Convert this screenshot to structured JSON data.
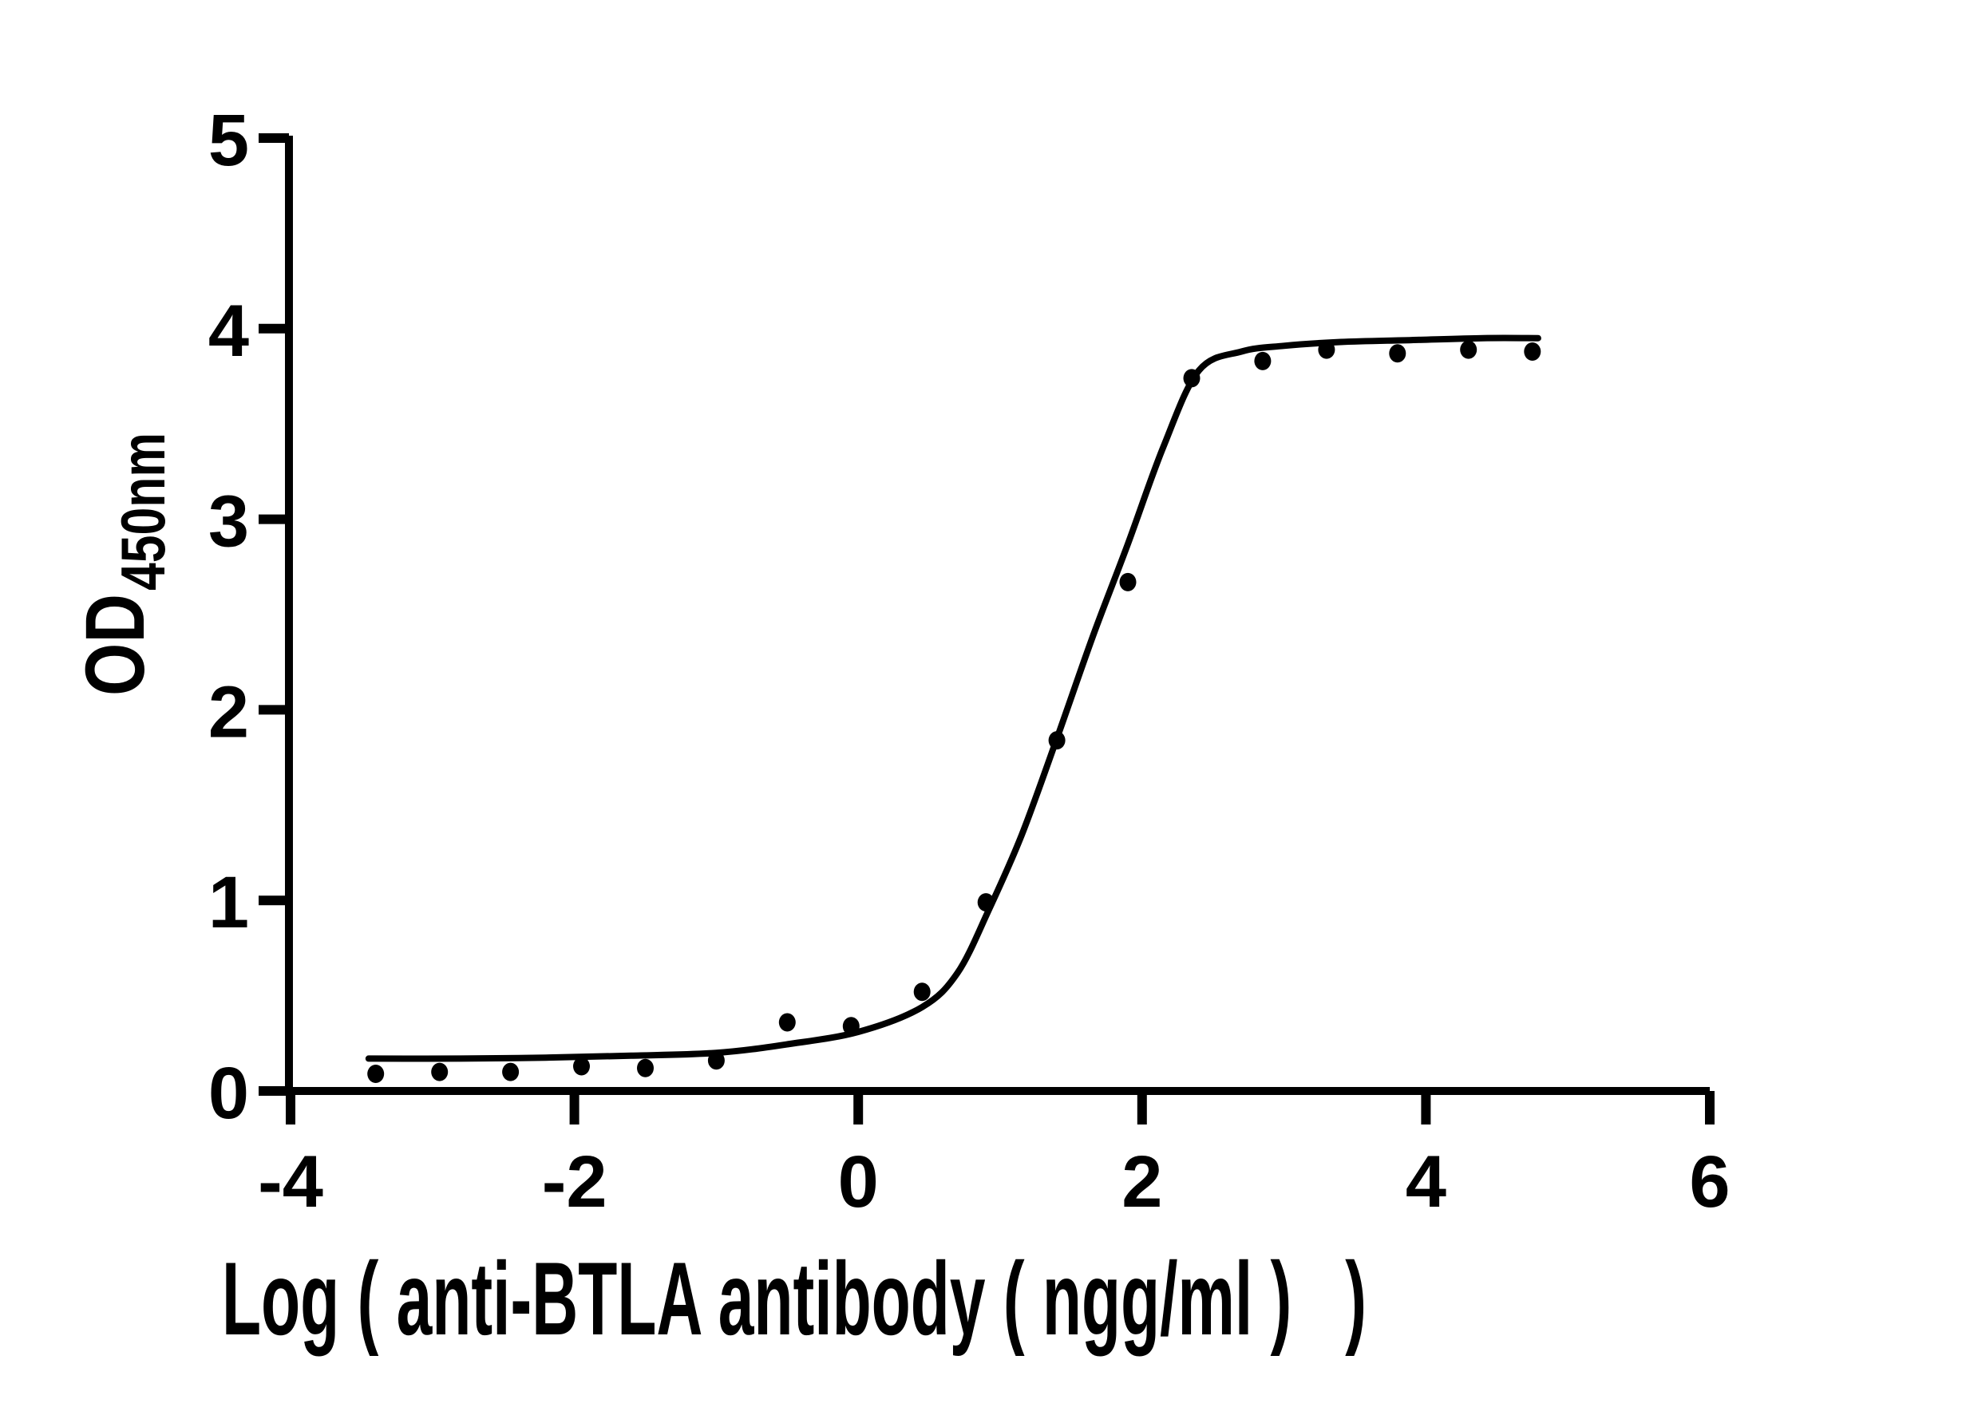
{
  "figure": {
    "background_color": "#ffffff",
    "ink_color": "#000000",
    "title": ""
  },
  "chart_data": {
    "type": "scatter",
    "subtype": "sigmoidal-dose-response-with-fit",
    "title": "",
    "xlabel": "Log ( anti-BTLA antibody ( ngg/ml )   )",
    "ylabel_main": "OD",
    "ylabel_sub": "450nm",
    "xlim": [
      -4,
      6
    ],
    "ylim": [
      0,
      5
    ],
    "x_ticks": [
      "-4",
      "-2",
      "0",
      "2",
      "4",
      "6"
    ],
    "x_tick_values": [
      -4,
      -2,
      0,
      2,
      4,
      6
    ],
    "y_ticks": [
      "0",
      "1",
      "2",
      "3",
      "4",
      "5"
    ],
    "y_tick_values": [
      0,
      1,
      2,
      3,
      4,
      5
    ],
    "grid": false,
    "legend_position": "none",
    "marker": "filled-circle",
    "marker_color": "#000000",
    "curve_color": "#000000",
    "points": [
      {
        "x": -3.4,
        "y": 0.09
      },
      {
        "x": -2.95,
        "y": 0.1
      },
      {
        "x": -2.45,
        "y": 0.1
      },
      {
        "x": -1.95,
        "y": 0.13
      },
      {
        "x": -1.5,
        "y": 0.12
      },
      {
        "x": -1.0,
        "y": 0.16
      },
      {
        "x": -0.5,
        "y": 0.36
      },
      {
        "x": -0.05,
        "y": 0.34
      },
      {
        "x": 0.45,
        "y": 0.52
      },
      {
        "x": 0.9,
        "y": 0.99
      },
      {
        "x": 1.4,
        "y": 1.84
      },
      {
        "x": 1.9,
        "y": 2.67
      },
      {
        "x": 2.35,
        "y": 3.74
      },
      {
        "x": 2.85,
        "y": 3.83
      },
      {
        "x": 3.3,
        "y": 3.89
      },
      {
        "x": 3.8,
        "y": 3.87
      },
      {
        "x": 4.3,
        "y": 3.89
      },
      {
        "x": 4.75,
        "y": 3.88
      }
    ],
    "fit_curve": {
      "model": "4PL sigmoid (fitted)",
      "bottom_plateau": 0.17,
      "top_plateau": 3.95,
      "waypoints": [
        [
          -3.45,
          0.17
        ],
        [
          -2.8,
          0.17
        ],
        [
          -2.2,
          0.175
        ],
        [
          -1.6,
          0.185
        ],
        [
          -1.0,
          0.2
        ],
        [
          -0.5,
          0.245
        ],
        [
          0.0,
          0.31
        ],
        [
          0.45,
          0.44
        ],
        [
          0.7,
          0.62
        ],
        [
          0.92,
          0.95
        ],
        [
          1.15,
          1.34
        ],
        [
          1.4,
          1.85
        ],
        [
          1.65,
          2.38
        ],
        [
          1.9,
          2.87
        ],
        [
          2.15,
          3.38
        ],
        [
          2.4,
          3.78
        ],
        [
          2.7,
          3.88
        ],
        [
          3.0,
          3.91
        ],
        [
          3.4,
          3.93
        ],
        [
          3.9,
          3.94
        ],
        [
          4.4,
          3.95
        ],
        [
          4.79,
          3.95
        ]
      ]
    }
  }
}
